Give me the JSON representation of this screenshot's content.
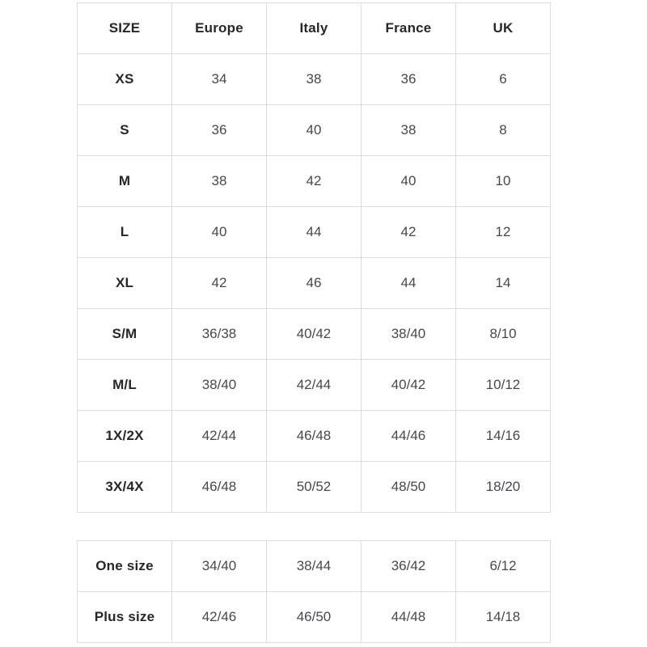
{
  "colors": {
    "background": "#ffffff",
    "border": "#dcdcdc",
    "header_text": "#25272b",
    "cell_text": "#46484d"
  },
  "main_table": {
    "headers": [
      "SIZE",
      "Europe",
      "Italy",
      "France",
      "UK"
    ],
    "rows": [
      {
        "label": "XS",
        "values": [
          "34",
          "38",
          "36",
          "6"
        ]
      },
      {
        "label": "S",
        "values": [
          "36",
          "40",
          "38",
          "8"
        ]
      },
      {
        "label": "M",
        "values": [
          "38",
          "42",
          "40",
          "10"
        ]
      },
      {
        "label": "L",
        "values": [
          "40",
          "44",
          "42",
          "12"
        ]
      },
      {
        "label": "XL",
        "values": [
          "42",
          "46",
          "44",
          "14"
        ]
      },
      {
        "label": "S/M",
        "values": [
          "36/38",
          "40/42",
          "38/40",
          "8/10"
        ]
      },
      {
        "label": "M/L",
        "values": [
          "38/40",
          "42/44",
          "40/42",
          "10/12"
        ]
      },
      {
        "label": "1X/2X",
        "values": [
          "42/44",
          "46/48",
          "44/46",
          "14/16"
        ]
      },
      {
        "label": "3X/4X",
        "values": [
          "46/48",
          "50/52",
          "48/50",
          "18/20"
        ]
      }
    ]
  },
  "secondary_table": {
    "rows": [
      {
        "label": "One size",
        "values": [
          "34/40",
          "38/44",
          "36/42",
          "6/12"
        ]
      },
      {
        "label": "Plus size",
        "values": [
          "42/46",
          "46/50",
          "44/48",
          "14/18"
        ]
      }
    ]
  }
}
